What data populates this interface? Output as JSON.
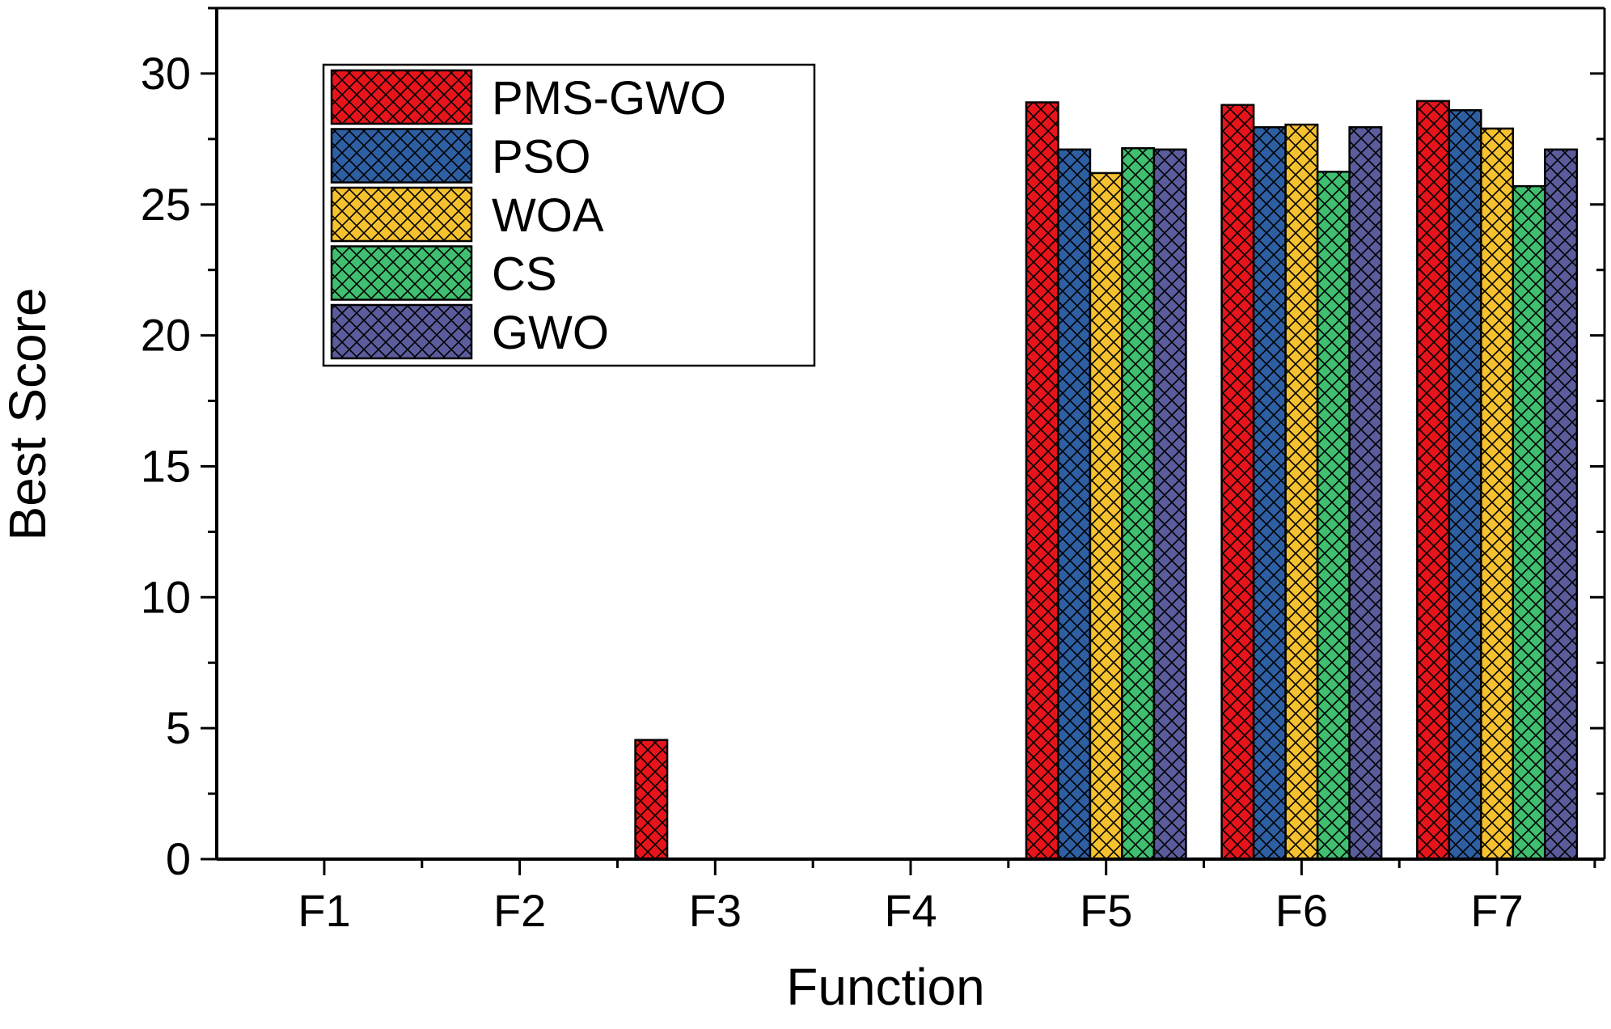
{
  "chart_data": {
    "type": "bar",
    "title": "",
    "xlabel": "Function",
    "ylabel": "Best Score",
    "ylim": [
      0,
      32.5
    ],
    "yticks": [
      0,
      5,
      10,
      15,
      20,
      25,
      30
    ],
    "grid": false,
    "legend_position": "top-left",
    "bar_pattern": "crosshatch",
    "categories": [
      "F1",
      "F2",
      "F3",
      "F4",
      "F5",
      "F6",
      "F7"
    ],
    "series": [
      {
        "name": "PMS-GWO",
        "color": "#e8141b",
        "values": [
          0,
          0,
          4.55,
          0,
          28.9,
          28.8,
          28.95
        ]
      },
      {
        "name": "PSO",
        "color": "#2e5fa3",
        "values": [
          0,
          0,
          0,
          0,
          27.1,
          27.95,
          28.6
        ]
      },
      {
        "name": "WOA",
        "color": "#f6c12e",
        "values": [
          0,
          0,
          0,
          0,
          26.2,
          28.05,
          27.9
        ]
      },
      {
        "name": "CS",
        "color": "#3fbf6f",
        "values": [
          0,
          0,
          0,
          0,
          27.15,
          26.25,
          25.7
        ]
      },
      {
        "name": "GWO",
        "color": "#5a5c9c",
        "values": [
          0,
          0,
          0,
          0,
          27.1,
          27.95,
          27.1
        ]
      }
    ]
  }
}
